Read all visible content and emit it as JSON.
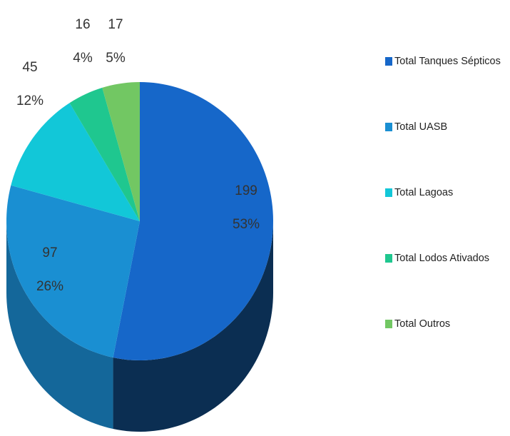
{
  "chart_data": {
    "type": "pie3d",
    "categories": [
      "Total Tanques Sépticos",
      "Total UASB",
      "Total Lagoas",
      "Total Lodos Ativados",
      "Total Outros"
    ],
    "values": [
      199,
      97,
      45,
      16,
      17
    ],
    "percent_labels": [
      "53%",
      "26%",
      "12%",
      "4%",
      "5%"
    ],
    "colors": [
      "#1667c9",
      "#1a8fd2",
      "#12c7d8",
      "#1fc78f",
      "#72c763"
    ],
    "side_colors": [
      "#0b2e52",
      "#14679a",
      "#0b8f9c",
      "#14906a",
      "#4f9446"
    ],
    "legend": "right"
  }
}
